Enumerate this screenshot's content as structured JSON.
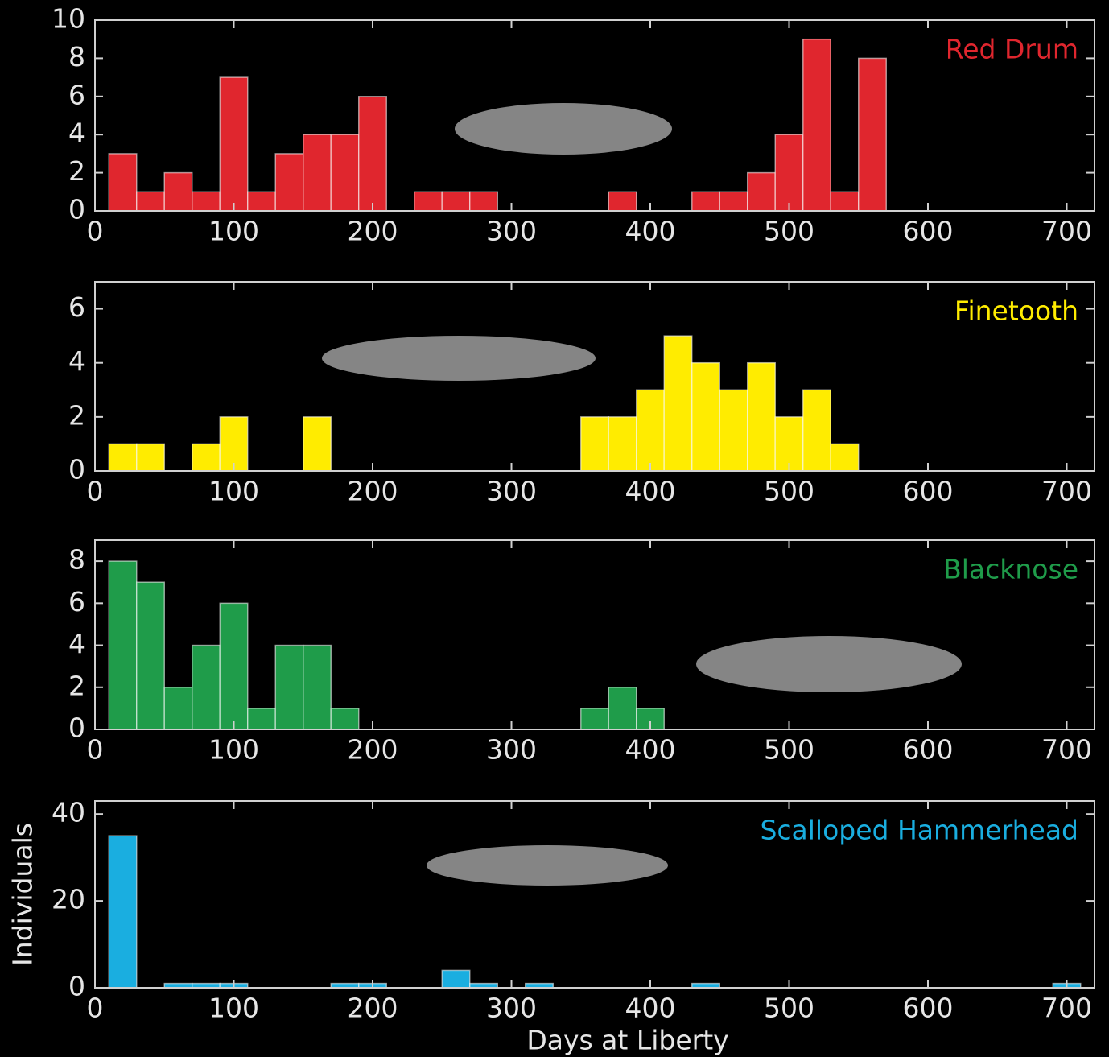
{
  "chart_data": [
    {
      "type": "histogram",
      "series": [
        {
          "name": "Red Drum",
          "color": "#e0262e",
          "values": [
            3,
            1,
            2,
            1,
            7,
            1,
            3,
            4,
            4,
            6,
            0,
            1,
            1,
            1,
            0,
            0,
            0,
            0,
            1,
            0,
            0,
            1,
            1,
            2,
            4,
            9,
            1,
            8,
            0,
            0,
            0,
            0,
            0,
            0,
            0
          ]
        }
      ],
      "bins": [
        10,
        30,
        50,
        70,
        90,
        110,
        130,
        150,
        170,
        190,
        210,
        230,
        250,
        270,
        290,
        310,
        330,
        350,
        370,
        390,
        410,
        430,
        450,
        470,
        490,
        510,
        530,
        550,
        570,
        590,
        610,
        630,
        650,
        670,
        690,
        710
      ],
      "xlim": [
        0,
        720
      ],
      "xticks": [
        0,
        100,
        200,
        300,
        400,
        500,
        600,
        700
      ],
      "ylim": [
        0,
        10
      ],
      "yticks": [
        0,
        2,
        4,
        6,
        8,
        10
      ]
    },
    {
      "type": "histogram",
      "series": [
        {
          "name": "Finetooth",
          "color": "#ffec00",
          "values": [
            1,
            1,
            0,
            1,
            2,
            0,
            0,
            2,
            0,
            0,
            0,
            0,
            0,
            0,
            0,
            0,
            0,
            2,
            2,
            3,
            5,
            4,
            3,
            4,
            2,
            3,
            1,
            0,
            0,
            0,
            0,
            0,
            0,
            0,
            0
          ]
        }
      ],
      "bins": [
        10,
        30,
        50,
        70,
        90,
        110,
        130,
        150,
        170,
        190,
        210,
        230,
        250,
        270,
        290,
        310,
        330,
        350,
        370,
        390,
        410,
        430,
        450,
        470,
        490,
        510,
        530,
        550,
        570,
        590,
        610,
        630,
        650,
        670,
        690,
        710
      ],
      "xlim": [
        0,
        720
      ],
      "xticks": [
        0,
        100,
        200,
        300,
        400,
        500,
        600,
        700
      ],
      "ylim": [
        0,
        7
      ],
      "yticks": [
        0,
        2,
        4,
        6
      ]
    },
    {
      "type": "histogram",
      "series": [
        {
          "name": "Blacknose",
          "color": "#1f9c4a",
          "values": [
            8,
            7,
            2,
            4,
            6,
            1,
            4,
            4,
            1,
            0,
            0,
            0,
            0,
            0,
            0,
            0,
            0,
            1,
            2,
            1,
            0,
            0,
            0,
            0,
            0,
            0,
            0,
            0,
            0,
            0,
            0,
            0,
            0,
            0,
            0
          ]
        }
      ],
      "bins": [
        10,
        30,
        50,
        70,
        90,
        110,
        130,
        150,
        170,
        190,
        210,
        230,
        250,
        270,
        290,
        310,
        330,
        350,
        370,
        390,
        410,
        430,
        450,
        470,
        490,
        510,
        530,
        550,
        570,
        590,
        610,
        630,
        650,
        670,
        690,
        710
      ],
      "xlim": [
        0,
        720
      ],
      "xticks": [
        0,
        100,
        200,
        300,
        400,
        500,
        600,
        700
      ],
      "ylim": [
        0,
        9
      ],
      "yticks": [
        0,
        2,
        4,
        6,
        8
      ]
    },
    {
      "type": "histogram",
      "series": [
        {
          "name": "Scalloped Hammerhead",
          "color": "#1aaee0",
          "values": [
            35,
            0,
            1,
            1,
            1,
            0,
            0,
            0,
            1,
            1,
            0,
            0,
            4,
            1,
            0,
            1,
            0,
            0,
            0,
            0,
            0,
            1,
            0,
            0,
            0,
            0,
            0,
            0,
            0,
            0,
            0,
            0,
            0,
            0,
            1
          ]
        }
      ],
      "bins": [
        10,
        30,
        50,
        70,
        90,
        110,
        130,
        150,
        170,
        190,
        210,
        230,
        250,
        270,
        290,
        310,
        330,
        350,
        370,
        390,
        410,
        430,
        450,
        470,
        490,
        510,
        530,
        550,
        570,
        590,
        610,
        630,
        650,
        670,
        690,
        710
      ],
      "xlim": [
        0,
        720
      ],
      "xticks": [
        0,
        100,
        200,
        300,
        400,
        500,
        600,
        700
      ],
      "ylim": [
        0,
        43
      ],
      "yticks": [
        0,
        20,
        40
      ],
      "xlabel": "Days at Liberty",
      "ylabel": "Individuals"
    }
  ]
}
